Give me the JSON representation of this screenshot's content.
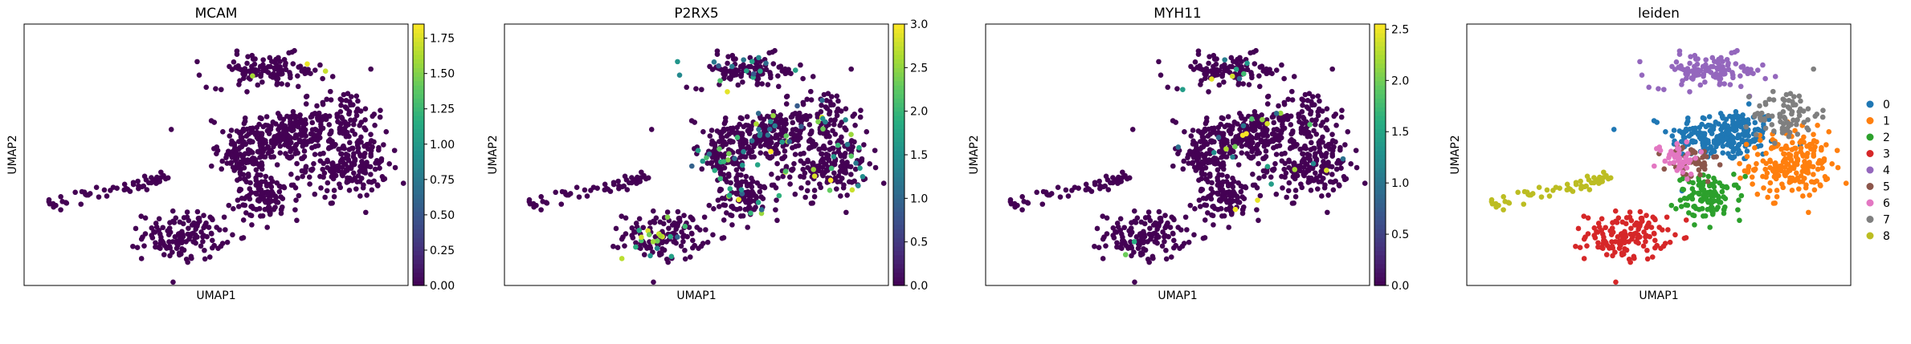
{
  "chart_data": [
    {
      "type": "scatter",
      "title": "MCAM",
      "xlabel": "UMAP1",
      "ylabel": "UMAP2",
      "colorbar": {
        "colormap": "viridis",
        "range": [
          0,
          1.85
        ],
        "ticks": [
          "0.00",
          "0.25",
          "0.50",
          "0.75",
          "1.00",
          "1.25",
          "1.50",
          "1.75"
        ]
      },
      "highlight_clusters": [
        {
          "x": 7.5,
          "y": 8.8,
          "value": 1.8
        },
        {
          "x": 6.0,
          "y": 8.3,
          "value": 1.6
        },
        {
          "x": 8.0,
          "y": 8.5,
          "value": 1.7
        }
      ]
    },
    {
      "type": "scatter",
      "title": "P2RX5",
      "xlabel": "UMAP1",
      "ylabel": "UMAP2",
      "colorbar": {
        "colormap": "viridis",
        "range": [
          0,
          3.0
        ],
        "ticks": [
          "0.0",
          "0.5",
          "1.0",
          "1.5",
          "2.0",
          "2.5",
          "3.0"
        ]
      },
      "expression_fraction": 0.12
    },
    {
      "type": "scatter",
      "title": "MYH11",
      "xlabel": "UMAP1",
      "ylabel": "UMAP2",
      "colorbar": {
        "colormap": "viridis",
        "range": [
          0,
          2.55
        ],
        "ticks": [
          "0.0",
          "0.5",
          "1.0",
          "1.5",
          "2.0",
          "2.5"
        ]
      },
      "expression_fraction": 0.03
    },
    {
      "type": "scatter",
      "title": "leiden",
      "xlabel": "UMAP1",
      "ylabel": "UMAP2",
      "legend_position": "right",
      "categories": [
        "0",
        "1",
        "2",
        "3",
        "4",
        "5",
        "6",
        "7",
        "8"
      ],
      "colors": [
        "#1f77b4",
        "#ff7f0e",
        "#2ca02c",
        "#d62728",
        "#9467bd",
        "#8c564b",
        "#e377c2",
        "#7f7f7f",
        "#bcbd22"
      ],
      "clusters": [
        {
          "label": "0",
          "center": [
            6.8,
            5.8
          ]
        },
        {
          "label": "1",
          "center": [
            8.6,
            4.6
          ]
        },
        {
          "label": "2",
          "center": [
            6.4,
            3.2
          ]
        },
        {
          "label": "3",
          "center": [
            4.1,
            1.6
          ]
        },
        {
          "label": "4",
          "center": [
            6.4,
            8.5
          ]
        },
        {
          "label": "5",
          "center": [
            5.9,
            4.6
          ]
        },
        {
          "label": "6",
          "center": [
            5.5,
            4.9
          ]
        },
        {
          "label": "7",
          "center": [
            8.5,
            6.7
          ]
        },
        {
          "label": "8",
          "center": [
            1.2,
            3.4
          ]
        }
      ]
    }
  ],
  "layout_data": {
    "colors": {
      "low": "#440154",
      "axis": "#000000"
    }
  }
}
